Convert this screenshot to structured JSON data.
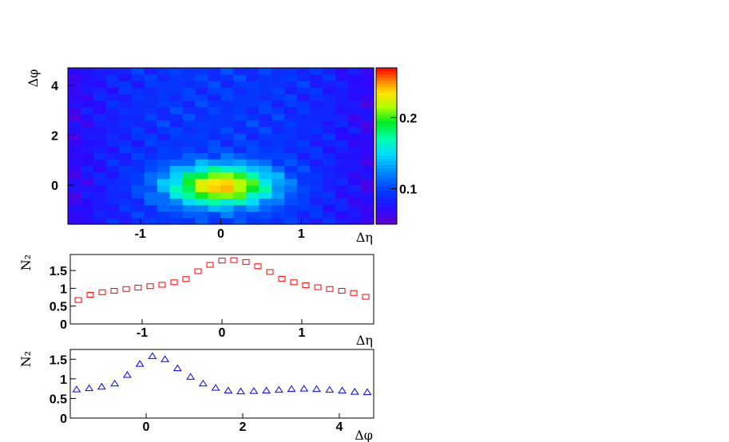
{
  "chart_data": [
    {
      "type": "heatmap",
      "xlabel": "Δη",
      "ylabel": "Δφ",
      "xlim": [
        -1.9,
        1.9
      ],
      "ylim": [
        -1.5708,
        4.7124
      ],
      "grid": false,
      "x_ticks": [
        -1,
        0,
        1
      ],
      "y_ticks": [
        0,
        2,
        4
      ],
      "nbins_x": 24,
      "nbins_y": 24,
      "peak": {
        "x": 0,
        "y": 0,
        "value": 0.25
      },
      "z_range": [
        0.05,
        0.27
      ],
      "colorbar_ticks": [
        {
          "value": 0.1,
          "label": "0.1"
        },
        {
          "value": 0.2,
          "label": "0.2"
        }
      ]
    },
    {
      "type": "scatter",
      "xlabel": "Δη",
      "ylabel": "N₂",
      "xlim": [
        -1.9,
        1.9
      ],
      "ylim": [
        0,
        1.95
      ],
      "grid": false,
      "x_ticks": [
        -1,
        0,
        1
      ],
      "y_ticks": [
        {
          "value": 0,
          "label": "0"
        },
        {
          "value": 0.5,
          "label": "0.5"
        },
        {
          "value": 1,
          "label": "1"
        },
        {
          "value": 1.5,
          "label": "1.5"
        }
      ],
      "marker": "open-square",
      "color": "#ff0000",
      "x": [
        -1.8,
        -1.65,
        -1.5,
        -1.35,
        -1.2,
        -1.05,
        -0.9,
        -0.75,
        -0.6,
        -0.45,
        -0.3,
        -0.15,
        0.0,
        0.15,
        0.3,
        0.45,
        0.6,
        0.75,
        0.9,
        1.05,
        1.2,
        1.35,
        1.5,
        1.65,
        1.8
      ],
      "y": [
        0.67,
        0.82,
        0.89,
        0.93,
        0.98,
        1.02,
        1.06,
        1.1,
        1.17,
        1.26,
        1.48,
        1.66,
        1.78,
        1.79,
        1.74,
        1.62,
        1.46,
        1.27,
        1.17,
        1.09,
        1.03,
        0.98,
        0.93,
        0.87,
        0.76
      ]
    },
    {
      "type": "scatter",
      "xlabel": "Δφ",
      "ylabel": "N₂",
      "xlim": [
        -1.5708,
        4.7124
      ],
      "ylim": [
        0,
        1.75
      ],
      "grid": false,
      "x_ticks": [
        0,
        2,
        4
      ],
      "y_ticks": [
        {
          "value": 0,
          "label": "0"
        },
        {
          "value": 0.5,
          "label": "0.5"
        },
        {
          "value": 1,
          "label": "1"
        },
        {
          "value": 1.5,
          "label": "1.5"
        }
      ],
      "marker": "open-triangle",
      "color": "#0000ff",
      "x": [
        -1.44,
        -1.18,
        -0.92,
        -0.65,
        -0.39,
        -0.13,
        0.13,
        0.39,
        0.65,
        0.92,
        1.18,
        1.44,
        1.7,
        1.96,
        2.23,
        2.49,
        2.75,
        3.01,
        3.27,
        3.53,
        3.8,
        4.06,
        4.32,
        4.58
      ],
      "y": [
        0.73,
        0.76,
        0.8,
        0.88,
        1.1,
        1.38,
        1.58,
        1.5,
        1.27,
        1.05,
        0.88,
        0.77,
        0.7,
        0.68,
        0.69,
        0.7,
        0.72,
        0.74,
        0.75,
        0.74,
        0.72,
        0.7,
        0.67,
        0.66
      ]
    }
  ]
}
